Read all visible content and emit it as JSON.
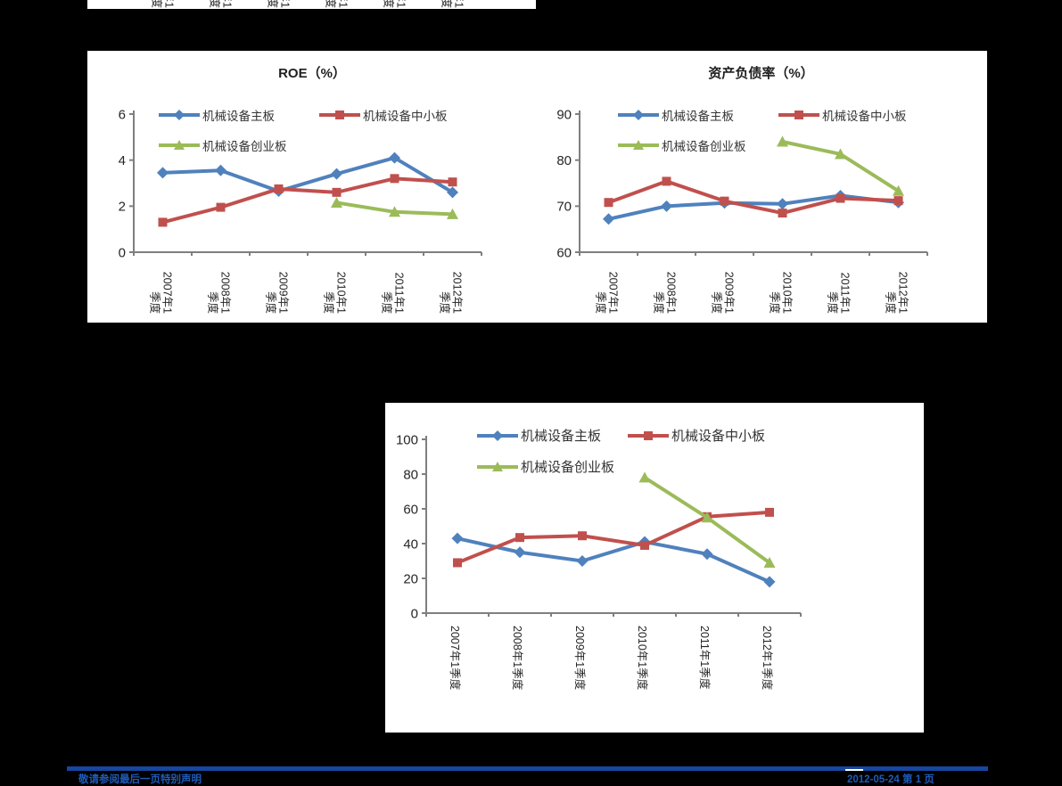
{
  "page": {
    "background": "#000000"
  },
  "top_strip": {
    "clipped_label_line1": "年1",
    "clipped_label_line2": "季度"
  },
  "footer": {
    "left_text": "敬请参阅最后一页特别声明",
    "right_text": "2012-05-24 第 1 页",
    "rule_color": "#17479E",
    "text_color": "#1E5BBA"
  },
  "chart_data": [
    {
      "type": "line",
      "title": "ROE（%）",
      "categories": [
        "2007年1季度",
        "2008年1季度",
        "2009年1季度",
        "2010年1季度",
        "2011年1季度",
        "2012年1季度"
      ],
      "ylim": [
        0,
        6
      ],
      "yticks": [
        0,
        2,
        4,
        6
      ],
      "grid": false,
      "legend_position": "top-inside",
      "series": [
        {
          "name": "机械设备主板",
          "color": "#4F81BD",
          "marker": "diamond",
          "values": [
            3.45,
            3.55,
            2.65,
            3.4,
            4.1,
            2.6
          ]
        },
        {
          "name": "机械设备中小板",
          "color": "#C0504D",
          "marker": "square",
          "values": [
            1.3,
            1.95,
            2.75,
            2.6,
            3.2,
            3.05
          ]
        },
        {
          "name": "机械设备创业板",
          "color": "#9BBB59",
          "marker": "triangle",
          "values": [
            null,
            null,
            null,
            2.15,
            1.75,
            1.65
          ]
        }
      ]
    },
    {
      "type": "line",
      "title": "资产负债率（%）",
      "categories": [
        "2007年1季度",
        "2008年1季度",
        "2009年1季度",
        "2010年1季度",
        "2011年1季度",
        "2012年1季度"
      ],
      "ylim": [
        60,
        90
      ],
      "yticks": [
        60,
        70,
        80,
        90
      ],
      "grid": false,
      "legend_position": "top-inside",
      "series": [
        {
          "name": "机械设备主板",
          "color": "#4F81BD",
          "marker": "diamond",
          "values": [
            67.2,
            70.0,
            70.7,
            70.5,
            72.3,
            70.8
          ]
        },
        {
          "name": "机械设备中小板",
          "color": "#C0504D",
          "marker": "square",
          "values": [
            70.8,
            75.4,
            71.1,
            68.5,
            71.7,
            71.2
          ]
        },
        {
          "name": "机械设备创业板",
          "color": "#9BBB59",
          "marker": "triangle",
          "values": [
            null,
            null,
            null,
            84.0,
            81.3,
            73.3
          ]
        }
      ]
    },
    {
      "type": "line",
      "title": "",
      "categories": [
        "2007年1季度",
        "2008年1季度",
        "2009年1季度",
        "2010年1季度",
        "2011年1季度",
        "2012年1季度"
      ],
      "ylim": [
        0,
        100
      ],
      "yticks": [
        0,
        20,
        40,
        60,
        80,
        100
      ],
      "grid": false,
      "legend_position": "top-inside",
      "series": [
        {
          "name": "机械设备主板",
          "color": "#4F81BD",
          "marker": "diamond",
          "values": [
            43,
            35,
            30,
            41,
            34,
            18
          ]
        },
        {
          "name": "机械设备中小板",
          "color": "#C0504D",
          "marker": "square",
          "values": [
            29,
            43.5,
            44.5,
            39,
            55.5,
            58
          ]
        },
        {
          "name": "机械设备创业板",
          "color": "#9BBB59",
          "marker": "triangle",
          "values": [
            null,
            null,
            null,
            78,
            55,
            29
          ]
        }
      ]
    }
  ]
}
